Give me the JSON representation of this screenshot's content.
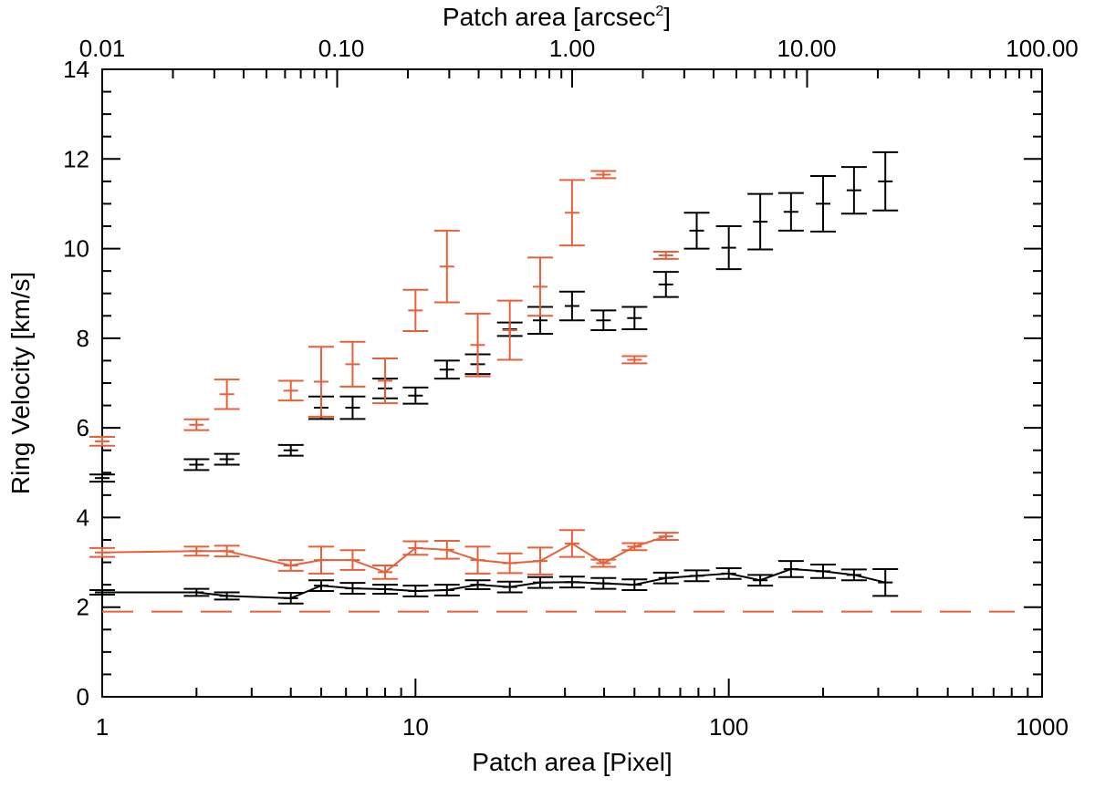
{
  "chart_data": {
    "type": "scatter",
    "x_scale": "log",
    "xlabel": "Patch area [Pixel]",
    "ylabel": "Ring Velocity [km/s]",
    "top_xlabel": "Patch area [arcsec",
    "top_xlabel_sup": "2",
    "top_xlabel_end": "]",
    "xlim": [
      1,
      1000
    ],
    "ylim": [
      0,
      14
    ],
    "xticks": [
      {
        "value": 1,
        "label": "1"
      },
      {
        "value": 10,
        "label": "10"
      },
      {
        "value": 100,
        "label": "100"
      },
      {
        "value": 1000,
        "label": "1000"
      }
    ],
    "yticks": [
      {
        "value": 0,
        "label": "0"
      },
      {
        "value": 2,
        "label": "2"
      },
      {
        "value": 4,
        "label": "4"
      },
      {
        "value": 6,
        "label": "6"
      },
      {
        "value": 8,
        "label": "8"
      },
      {
        "value": 10,
        "label": "10"
      },
      {
        "value": 12,
        "label": "12"
      },
      {
        "value": 14,
        "label": "14"
      }
    ],
    "top_ticks": [
      {
        "pixel_value": 1,
        "label": "0.01"
      },
      {
        "pixel_value": 6.31,
        "label": "0.10"
      },
      {
        "pixel_value": 39.8,
        "label": "1.00"
      },
      {
        "pixel_value": 251,
        "label": "10.00"
      },
      {
        "pixel_value": 1585,
        "label": "100.00"
      }
    ],
    "colors": {
      "black": "#000000",
      "orange": "#e8603a"
    },
    "series": [
      {
        "name": "black upper",
        "color": "#000000",
        "line": false,
        "points": [
          {
            "x": 1,
            "y": 4.88,
            "err": 0.08
          },
          {
            "x": 2,
            "y": 5.18,
            "err": 0.12
          },
          {
            "x": 2.5,
            "y": 5.3,
            "err": 0.12
          },
          {
            "x": 4,
            "y": 5.5,
            "err": 0.12
          },
          {
            "x": 5,
            "y": 6.45,
            "err": 0.25
          },
          {
            "x": 6.3,
            "y": 6.45,
            "err": 0.25
          },
          {
            "x": 8,
            "y": 6.88,
            "err": 0.22
          },
          {
            "x": 10,
            "y": 6.72,
            "err": 0.18
          },
          {
            "x": 12.6,
            "y": 7.3,
            "err": 0.2
          },
          {
            "x": 15.8,
            "y": 7.42,
            "err": 0.22
          },
          {
            "x": 20,
            "y": 8.2,
            "err": 0.15
          },
          {
            "x": 25,
            "y": 8.4,
            "err": 0.3
          },
          {
            "x": 31.6,
            "y": 8.72,
            "err": 0.32
          },
          {
            "x": 39.8,
            "y": 8.4,
            "err": 0.22
          },
          {
            "x": 50,
            "y": 8.45,
            "err": 0.25
          },
          {
            "x": 63,
            "y": 9.2,
            "err": 0.28
          },
          {
            "x": 79,
            "y": 10.4,
            "err": 0.4
          },
          {
            "x": 100,
            "y": 10.02,
            "err": 0.48
          },
          {
            "x": 126,
            "y": 10.6,
            "err": 0.62
          },
          {
            "x": 158,
            "y": 10.82,
            "err": 0.42
          },
          {
            "x": 200,
            "y": 11.0,
            "err": 0.62
          },
          {
            "x": 251,
            "y": 11.3,
            "err": 0.52
          },
          {
            "x": 316,
            "y": 11.5,
            "err": 0.65
          }
        ]
      },
      {
        "name": "orange upper",
        "color": "#e8603a",
        "line": false,
        "points": [
          {
            "x": 1,
            "y": 5.7,
            "err": 0.1
          },
          {
            "x": 2,
            "y": 6.07,
            "err": 0.12
          },
          {
            "x": 2.5,
            "y": 6.75,
            "err": 0.33
          },
          {
            "x": 4,
            "y": 6.83,
            "err": 0.22
          },
          {
            "x": 5,
            "y": 7.03,
            "err": 0.78
          },
          {
            "x": 6.3,
            "y": 7.42,
            "err": 0.5
          },
          {
            "x": 8,
            "y": 7.05,
            "err": 0.5
          },
          {
            "x": 10,
            "y": 8.62,
            "err": 0.46
          },
          {
            "x": 12.6,
            "y": 9.6,
            "err": 0.8
          },
          {
            "x": 15.8,
            "y": 7.85,
            "err": 0.7
          },
          {
            "x": 20,
            "y": 8.18,
            "err": 0.66
          },
          {
            "x": 25,
            "y": 9.15,
            "err": 0.65
          },
          {
            "x": 31.6,
            "y": 10.8,
            "err": 0.73
          },
          {
            "x": 39.8,
            "y": 11.65,
            "err": 0.08
          },
          {
            "x": 50,
            "y": 7.52,
            "err": 0.08
          },
          {
            "x": 63,
            "y": 9.85,
            "err": 0.08
          }
        ]
      },
      {
        "name": "black lower",
        "color": "#000000",
        "line": true,
        "points": [
          {
            "x": 1,
            "y": 2.33,
            "err": 0.05
          },
          {
            "x": 2,
            "y": 2.33,
            "err": 0.08
          },
          {
            "x": 2.5,
            "y": 2.25,
            "err": 0.08
          },
          {
            "x": 4,
            "y": 2.2,
            "err": 0.12
          },
          {
            "x": 5,
            "y": 2.48,
            "err": 0.12
          },
          {
            "x": 6.3,
            "y": 2.42,
            "err": 0.12
          },
          {
            "x": 8,
            "y": 2.4,
            "err": 0.1
          },
          {
            "x": 10,
            "y": 2.36,
            "err": 0.12
          },
          {
            "x": 12.6,
            "y": 2.38,
            "err": 0.12
          },
          {
            "x": 15.8,
            "y": 2.5,
            "err": 0.1
          },
          {
            "x": 20,
            "y": 2.45,
            "err": 0.12
          },
          {
            "x": 25,
            "y": 2.55,
            "err": 0.12
          },
          {
            "x": 31.6,
            "y": 2.56,
            "err": 0.12
          },
          {
            "x": 39.8,
            "y": 2.53,
            "err": 0.12
          },
          {
            "x": 50,
            "y": 2.5,
            "err": 0.12
          },
          {
            "x": 63,
            "y": 2.65,
            "err": 0.12
          },
          {
            "x": 79,
            "y": 2.7,
            "err": 0.12
          },
          {
            "x": 100,
            "y": 2.75,
            "err": 0.12
          },
          {
            "x": 126,
            "y": 2.6,
            "err": 0.12
          },
          {
            "x": 158,
            "y": 2.85,
            "err": 0.18
          },
          {
            "x": 200,
            "y": 2.8,
            "err": 0.15
          },
          {
            "x": 251,
            "y": 2.72,
            "err": 0.12
          },
          {
            "x": 316,
            "y": 2.55,
            "err": 0.3
          }
        ]
      },
      {
        "name": "orange lower",
        "color": "#e8603a",
        "line": true,
        "points": [
          {
            "x": 1,
            "y": 3.22,
            "err": 0.1
          },
          {
            "x": 2,
            "y": 3.25,
            "err": 0.1
          },
          {
            "x": 2.5,
            "y": 3.25,
            "err": 0.12
          },
          {
            "x": 4,
            "y": 2.93,
            "err": 0.12
          },
          {
            "x": 5,
            "y": 3.05,
            "err": 0.3
          },
          {
            "x": 6.3,
            "y": 3.05,
            "err": 0.22
          },
          {
            "x": 8,
            "y": 2.78,
            "err": 0.15
          },
          {
            "x": 10,
            "y": 3.32,
            "err": 0.15
          },
          {
            "x": 12.6,
            "y": 3.28,
            "err": 0.2
          },
          {
            "x": 15.8,
            "y": 3.05,
            "err": 0.3
          },
          {
            "x": 20,
            "y": 2.98,
            "err": 0.22
          },
          {
            "x": 25,
            "y": 3.03,
            "err": 0.3
          },
          {
            "x": 31.6,
            "y": 3.42,
            "err": 0.3
          },
          {
            "x": 39.8,
            "y": 2.98,
            "err": 0.08
          },
          {
            "x": 50,
            "y": 3.35,
            "err": 0.08
          },
          {
            "x": 63,
            "y": 3.58,
            "err": 0.08
          }
        ]
      }
    ],
    "reference_line": {
      "y": 1.9,
      "color": "#e8603a",
      "style": "dashed"
    }
  }
}
